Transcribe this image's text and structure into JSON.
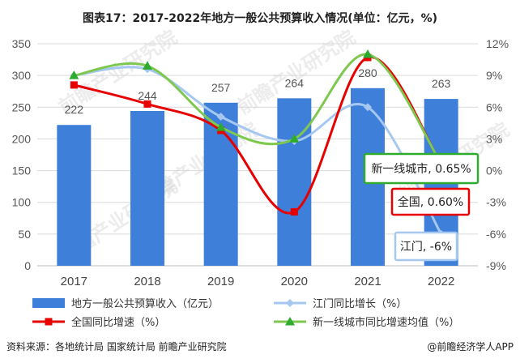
{
  "title": "图表17：2017-2022年地方一般公共预算收入情况(单位：亿元，%)",
  "source": "资料来源：各地统计局 国家统计局 前瞻产业研究院",
  "brand": "@前瞻经济学人APP",
  "watermark": "前瞻产业研究院",
  "colors": {
    "bar": "#3e7fd9",
    "jiangmen": "#a6c8f0",
    "national": "#e60000",
    "tier1": "#7ec850",
    "tier1_marker": "#2eaa2e",
    "axis": "#bfbfbf",
    "grid": "#d9d9d9"
  },
  "chart_data": {
    "type": "bar",
    "categories": [
      "2017",
      "2018",
      "2019",
      "2020",
      "2021",
      "2022"
    ],
    "left_axis": {
      "min": 0,
      "max": 350,
      "step": 50,
      "ticks": [
        "0",
        "50",
        "100",
        "150",
        "200",
        "250",
        "300",
        "350"
      ]
    },
    "right_axis": {
      "min": -9,
      "max": 12,
      "step": 3,
      "ticks": [
        "-9%",
        "-6%",
        "-3%",
        "0%",
        "3%",
        "6%",
        "9%",
        "12%"
      ]
    },
    "bars": {
      "name": "地方一般公共预算收入（亿元）",
      "values": [
        222,
        244,
        257,
        264,
        280,
        263
      ],
      "labels": [
        "222",
        "244",
        "257",
        "264",
        "280",
        "263"
      ]
    },
    "series": [
      {
        "key": "jiangmen",
        "name": "江门同比增长（%）",
        "marker": "diamond",
        "values": [
          9.0,
          9.6,
          5.1,
          2.8,
          6.0,
          -6.0
        ]
      },
      {
        "key": "national",
        "name": "全国同比增速（%）",
        "marker": "square",
        "values": [
          8.1,
          6.3,
          3.8,
          -3.9,
          10.7,
          0.6
        ]
      },
      {
        "key": "tier1",
        "name": "新一线城市同比增速均值（%）",
        "marker": "triangle",
        "values": [
          9.0,
          9.9,
          4.1,
          3.0,
          11.0,
          0.65
        ]
      }
    ],
    "callouts": [
      {
        "series": "tier1",
        "text": "新一线城市, 0.65%"
      },
      {
        "series": "national",
        "text": "全国, 0.60%"
      },
      {
        "series": "jiangmen",
        "text": "江门, -6%"
      }
    ],
    "grid": true,
    "legend_position": "bottom"
  }
}
